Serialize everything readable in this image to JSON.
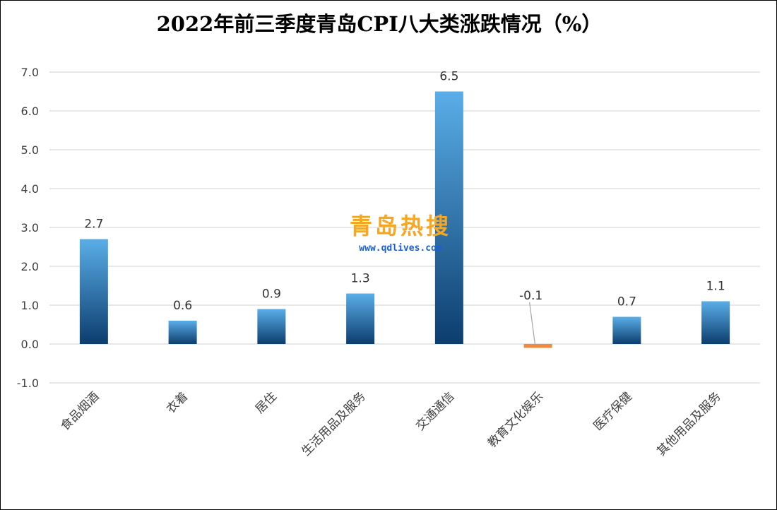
{
  "chart_data": {
    "type": "bar",
    "title": "2022年前三季度青岛CPI八大类涨跌情况（%）",
    "categories": [
      "食品烟酒",
      "衣着",
      "居住",
      "生活用品及服务",
      "交通通信",
      "教育文化娱乐",
      "医疗保健",
      "其他用品及服务"
    ],
    "values": [
      2.7,
      0.6,
      0.9,
      1.3,
      6.5,
      -0.1,
      0.7,
      1.1
    ],
    "value_labels": [
      "2.7",
      "0.6",
      "0.9",
      "1.3",
      "6.5",
      "-0.1",
      "0.7",
      "1.1"
    ],
    "y_ticks": [
      "-1.0",
      "0.0",
      "1.0",
      "2.0",
      "3.0",
      "4.0",
      "5.0",
      "6.0",
      "7.0"
    ],
    "ylim": [
      -1,
      7
    ],
    "xlabel": "",
    "ylabel": "",
    "grid": true,
    "colors": {
      "bar_top": "#5aaee8",
      "bar_bottom": "#0c3d6e",
      "negative_bar": "#f08a3c",
      "gridline": "#d0d0d0",
      "leader_line": "#a6a6a6"
    }
  },
  "watermark": {
    "brand": "青岛热搜",
    "url": "www.qdlives.com"
  }
}
